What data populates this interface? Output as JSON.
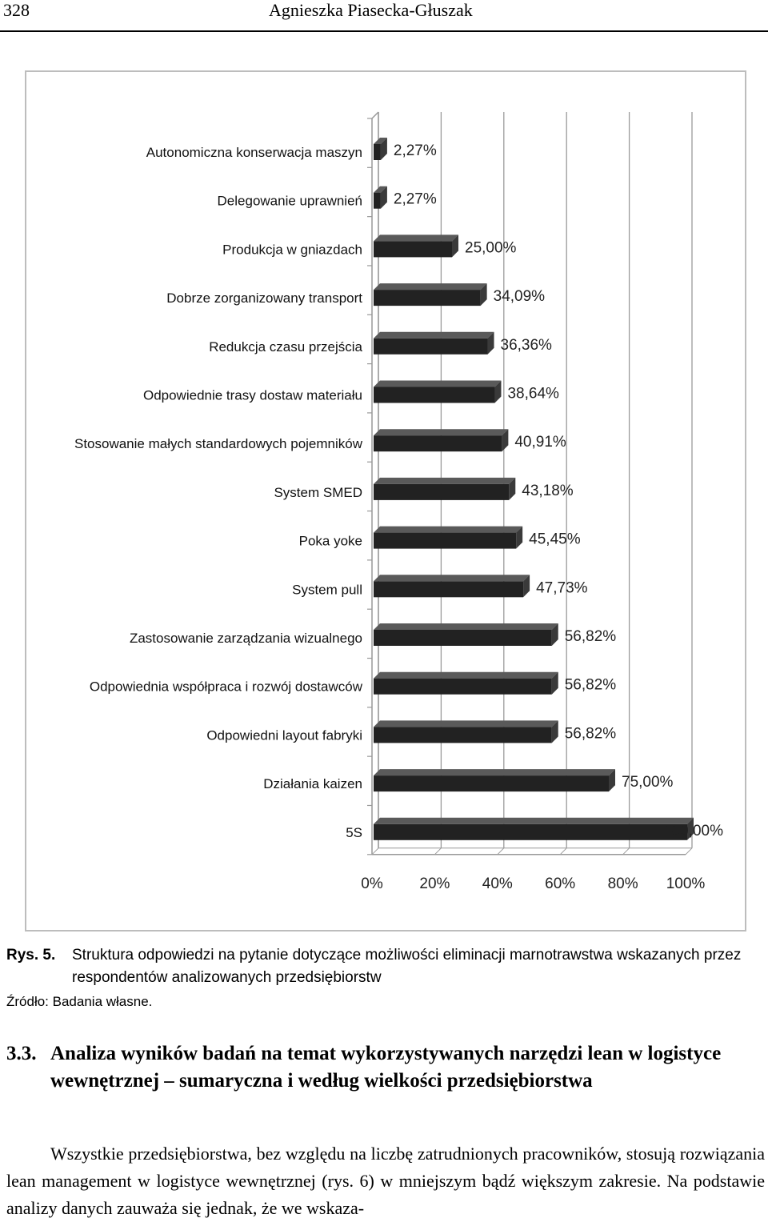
{
  "header": {
    "page_number": "328",
    "running_title": "Agnieszka Piasecka-Głuszak"
  },
  "chart_data": {
    "type": "bar",
    "orientation": "horizontal",
    "categories": [
      "Autonomiczna konserwacja maszyn",
      "Delegowanie uprawnień",
      "Produkcja w gniazdach",
      "Dobrze zorganizowany transport",
      "Redukcja czasu przejścia",
      "Odpowiednie trasy dostaw materiału",
      "Stosowanie małych standardowych pojemników",
      "System SMED",
      "Poka yoke",
      "System pull",
      "Zastosowanie zarządzania wizualnego",
      "Odpowiednia współpraca i rozwój dostawców",
      "Odpowiedni layout fabryki",
      "Działania kaizen",
      "5S"
    ],
    "values": [
      2.27,
      2.27,
      25.0,
      34.09,
      36.36,
      38.64,
      40.91,
      43.18,
      45.45,
      47.73,
      56.82,
      56.82,
      56.82,
      75.0,
      100.0
    ],
    "value_labels": [
      "2,27%",
      "2,27%",
      "25,00%",
      "34,09%",
      "36,36%",
      "38,64%",
      "40,91%",
      "43,18%",
      "45,45%",
      "47,73%",
      "56,82%",
      "56,82%",
      "56,82%",
      "75,00%",
      "100,00%"
    ],
    "x_ticks": [
      "0%",
      "20%",
      "40%",
      "60%",
      "80%",
      "100%"
    ],
    "xlim": [
      0,
      100
    ],
    "grid": true,
    "style": "3d",
    "bar_color": "#222222",
    "title": "",
    "xlabel": "",
    "ylabel": ""
  },
  "caption": {
    "label": "Rys. 5.",
    "text": "Struktura odpowiedzi na pytanie dotyczące możliwości eliminacji marnotrawstwa wskazanych przez respondentów analizowanych przedsiębiorstw"
  },
  "source": "Źródło: Badania własne.",
  "section": {
    "number": "3.3.",
    "title": "Analiza wyników badań na temat wykorzystywanych narzędzi lean w logistyce wewnętrznej – sumaryczna i według wielkości przedsiębiorstwa"
  },
  "body_text": "Wszystkie przedsiębiorstwa, bez względu na liczbę zatrudnionych pracowników, stosują rozwiązania lean management w logistyce wewnętrznej (rys. 6) w mniejszym bądź większym zakresie. Na podstawie analizy danych zauważa się jednak, że we wskaza-"
}
